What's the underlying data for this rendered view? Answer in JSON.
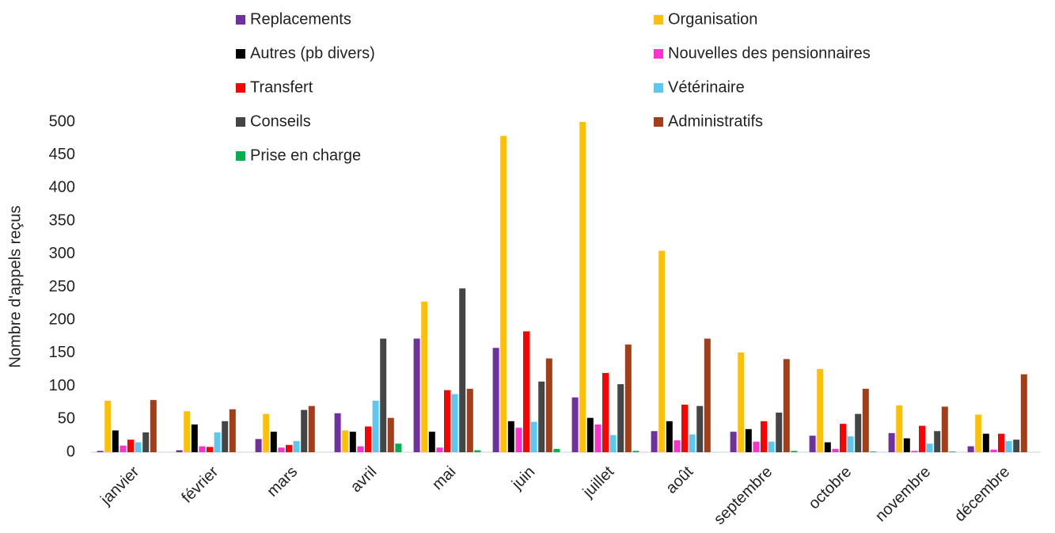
{
  "chart_data": {
    "type": "bar",
    "y_label": "Nombre d'appels reçus",
    "categories": [
      "janvier",
      "février",
      "mars",
      "avril",
      "mai",
      "juin",
      "juillet",
      "août",
      "septembre",
      "octobre",
      "novembre",
      "décembre"
    ],
    "series": [
      {
        "name": "Replacements",
        "color": "#7030a0",
        "values": [
          2,
          3,
          20,
          59,
          172,
          158,
          83,
          32,
          31,
          25,
          29,
          9
        ]
      },
      {
        "name": "Organisation",
        "color": "#ffc000",
        "values": [
          78,
          62,
          58,
          33,
          228,
          479,
          500,
          305,
          151,
          126,
          71,
          57
        ]
      },
      {
        "name": "Autres (pb divers)",
        "color": "#000000",
        "values": [
          33,
          42,
          31,
          31,
          31,
          47,
          52,
          47,
          35,
          15,
          21,
          28
        ]
      },
      {
        "name": "Nouvelles des pensionnaires",
        "color": "#ff33cc",
        "values": [
          10,
          9,
          7,
          9,
          7,
          37,
          42,
          18,
          16,
          5,
          2,
          4
        ]
      },
      {
        "name": "Transfert",
        "color": "#ff0000",
        "values": [
          19,
          8,
          11,
          39,
          94,
          183,
          120,
          72,
          47,
          43,
          40,
          28
        ]
      },
      {
        "name": "Vétérinaire",
        "color": "#5bc8f0",
        "values": [
          15,
          30,
          17,
          78,
          88,
          46,
          26,
          27,
          16,
          24,
          13,
          17
        ]
      },
      {
        "name": "Conseils",
        "color": "#454545",
        "values": [
          30,
          47,
          64,
          172,
          248,
          107,
          103,
          70,
          60,
          58,
          32,
          19
        ]
      },
      {
        "name": "Administratifs",
        "color": "#a23e1a",
        "values": [
          79,
          65,
          70,
          52,
          96,
          142,
          163,
          172,
          141,
          96,
          69,
          118
        ]
      },
      {
        "name": "Prise en charge",
        "color": "#00b050",
        "values": [
          0,
          0,
          0,
          13,
          3,
          5,
          2,
          0,
          2,
          1,
          1,
          0
        ]
      }
    ],
    "ylim": [
      0,
      500
    ],
    "yticks": [
      0,
      50,
      100,
      150,
      200,
      250,
      300,
      350,
      400,
      450,
      500
    ],
    "grid": false
  }
}
